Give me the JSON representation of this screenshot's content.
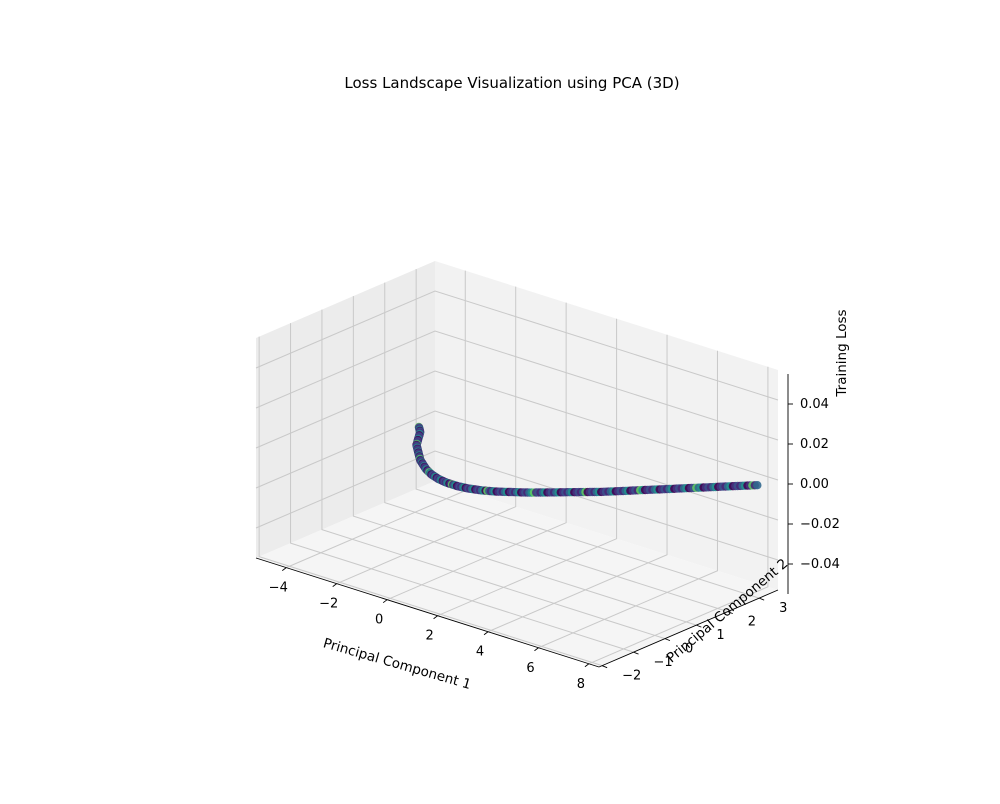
{
  "chart_data": {
    "type": "scatter",
    "projection": "3d",
    "title": "Loss Landscape Visualization using PCA (3D)",
    "xlabel": "Principal Component 1",
    "ylabel": "Principal Component 2",
    "zlabel": "Training Loss",
    "xticks": [
      "−4",
      "−2",
      "0",
      "2",
      "4",
      "6",
      "8"
    ],
    "yticks": [
      "−2",
      "−1",
      "0",
      "1",
      "2",
      "3"
    ],
    "zticks": [
      "−0.04",
      "−0.02",
      "0.00",
      "0.02",
      "0.04"
    ],
    "xlim": [
      -5.2,
      8.4
    ],
    "ylim": [
      -2.1,
      3.6
    ],
    "zlim": [
      -0.055,
      0.055
    ],
    "grid": true,
    "colormap": "viridis",
    "marker_color_range": [
      "#440154",
      "#3b528b",
      "#21918c",
      "#5ec962"
    ],
    "series": [
      {
        "x": [
          -2.6,
          -2.3,
          -2.0,
          -1.7,
          -1.4,
          -1.1,
          -0.8,
          -0.5,
          -0.2,
          0.2,
          0.6,
          1.0,
          1.4,
          1.8,
          2.2,
          2.6,
          3.0,
          3.4,
          3.8,
          4.2,
          4.6,
          5.0,
          5.4,
          5.8,
          6.2,
          6.6,
          7.0,
          7.4,
          7.8,
          8.2
        ],
        "y": [
          1.0,
          0.8,
          0.5,
          0.2,
          0.0,
          -0.2,
          -0.4,
          -0.55,
          -0.7,
          -0.85,
          -0.95,
          -1.0,
          -1.0,
          -0.95,
          -0.85,
          -0.7,
          -0.5,
          -0.3,
          -0.05,
          0.2,
          0.45,
          0.7,
          1.0,
          1.3,
          1.6,
          1.9,
          2.2,
          2.5,
          2.8,
          3.1
        ],
        "z": [
          0.0,
          0.0,
          0.0,
          0.0,
          0.0,
          0.0,
          0.0,
          0.0,
          0.0,
          0.0,
          0.0,
          0.0,
          0.0,
          0.0,
          0.0,
          0.0,
          0.0,
          0.0,
          0.0,
          0.0,
          0.0,
          0.0,
          0.0,
          0.0,
          0.0,
          0.0,
          0.0,
          0.0,
          0.0,
          0.0
        ]
      }
    ]
  }
}
